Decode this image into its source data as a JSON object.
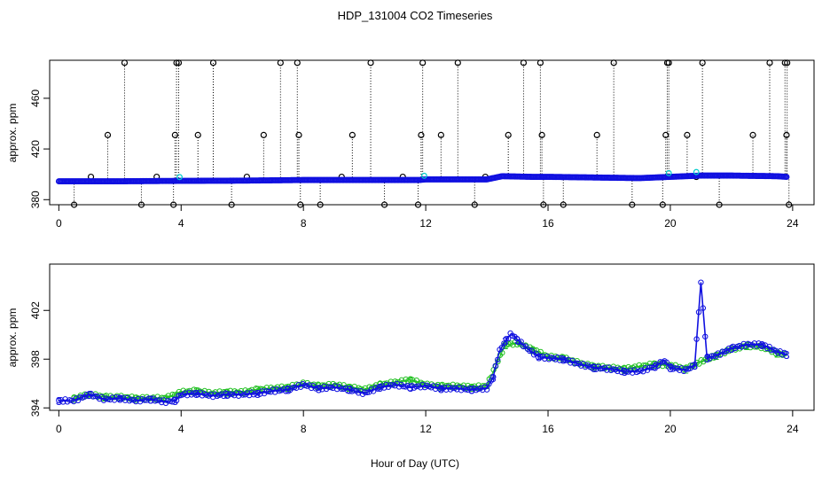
{
  "title": "HDP_131004  CO2 Timeseries",
  "xlabel": "Hour of Day (UTC)",
  "colors": {
    "primary": "#1010e0",
    "secondary": "#20c020",
    "outlier": "#000000",
    "highlight": "#00cccc"
  },
  "chart_data": [
    {
      "type": "scatter",
      "ylabel": "approx. ppm",
      "xlim": [
        -0.3,
        24.7
      ],
      "ylim": [
        376,
        490
      ],
      "xticks": [
        0,
        4,
        8,
        12,
        16,
        20,
        24
      ],
      "yticks": [
        380,
        420,
        460
      ],
      "baseline": [
        [
          0,
          394.5
        ],
        [
          2,
          394.5
        ],
        [
          3.8,
          394.8
        ],
        [
          6,
          395
        ],
        [
          8,
          395.5
        ],
        [
          10,
          395.5
        ],
        [
          11.8,
          395.5
        ],
        [
          12,
          396
        ],
        [
          14,
          396
        ],
        [
          14.5,
          398.5
        ],
        [
          15.5,
          398
        ],
        [
          16,
          398
        ],
        [
          19,
          397
        ],
        [
          20,
          398
        ],
        [
          21,
          399
        ],
        [
          22,
          399
        ],
        [
          23.5,
          398.5
        ],
        [
          23.8,
          398
        ]
      ],
      "outlier_hours_top": [
        2.15,
        3.85,
        3.92,
        5.05,
        7.25,
        7.8,
        10.2,
        11.9,
        13.05,
        15.2,
        15.75,
        18.15,
        19.9,
        19.95,
        21.05,
        23.25,
        23.75,
        23.82
      ],
      "outlier_hours_mid": [
        1.6,
        3.8,
        4.55,
        6.7,
        7.85,
        9.6,
        11.85,
        12.5,
        14.7,
        15.8,
        17.6,
        19.85,
        20.55,
        22.7,
        23.8
      ],
      "outlier_hours_low": [
        0.5,
        2.7,
        3.75,
        5.65,
        7.9,
        8.55,
        10.65,
        11.75,
        13.6,
        15.85,
        16.5,
        18.75,
        19.75,
        21.6,
        23.88
      ],
      "outlier_hours_near": [
        1.05,
        3.2,
        6.15,
        9.25,
        11.25,
        13.95,
        20.85
      ],
      "outlier_values": {
        "top": 488,
        "mid": 431,
        "low": 376,
        "near": 398
      }
    },
    {
      "type": "line",
      "ylabel": "approx. ppm",
      "xlim": [
        -0.3,
        24.7
      ],
      "ylim": [
        393.8,
        405.8
      ],
      "xticks": [
        0,
        4,
        8,
        12,
        16,
        20,
        24
      ],
      "yticks": [
        394,
        398,
        402
      ],
      "series": [
        {
          "marker": "3",
          "values": [
            [
              0,
              394.6
            ],
            [
              0.5,
              394.6
            ],
            [
              1,
              395.1
            ],
            [
              1.5,
              394.7
            ],
            [
              2,
              394.8
            ],
            [
              2.5,
              394.6
            ],
            [
              3,
              394.7
            ],
            [
              3.5,
              394.5
            ],
            [
              3.8,
              394.6
            ],
            [
              4,
              395.1
            ],
            [
              4.5,
              395.2
            ],
            [
              5,
              395
            ],
            [
              5.5,
              395.1
            ],
            [
              6,
              395.1
            ],
            [
              6.5,
              395.2
            ],
            [
              7,
              395.4
            ],
            [
              7.5,
              395.5
            ],
            [
              8,
              395.9
            ],
            [
              8.5,
              395.6
            ],
            [
              9,
              395.7
            ],
            [
              9.5,
              395.5
            ],
            [
              10,
              395.2
            ],
            [
              10.5,
              395.7
            ],
            [
              11,
              395.9
            ],
            [
              11.5,
              395.7
            ],
            [
              12,
              395.8
            ],
            [
              12.5,
              395.6
            ],
            [
              13,
              395.6
            ],
            [
              13.5,
              395.5
            ],
            [
              14,
              395.6
            ],
            [
              14.2,
              396.5
            ],
            [
              14.4,
              398.6
            ],
            [
              14.6,
              399.5
            ],
            [
              14.8,
              400.1
            ],
            [
              15,
              399.6
            ],
            [
              15.3,
              398.9
            ],
            [
              15.7,
              398.2
            ],
            [
              16,
              398.1
            ],
            [
              16.5,
              398
            ],
            [
              17,
              397.6
            ],
            [
              17.5,
              397.3
            ],
            [
              18,
              397.2
            ],
            [
              18.5,
              397
            ],
            [
              19,
              397
            ],
            [
              19.5,
              397.4
            ],
            [
              19.8,
              397.9
            ],
            [
              20,
              397.3
            ],
            [
              20.5,
              397.1
            ],
            [
              20.8,
              397.5
            ],
            [
              21,
              404.3
            ],
            [
              21.2,
              398.1
            ],
            [
              21.5,
              398.3
            ],
            [
              22,
              398.9
            ],
            [
              22.5,
              399.2
            ],
            [
              23,
              399.2
            ],
            [
              23.5,
              398.6
            ],
            [
              23.8,
              398.4
            ]
          ]
        },
        {
          "marker": "2",
          "values": [
            [
              0.5,
              394.8
            ],
            [
              1,
              395.1
            ],
            [
              1.5,
              394.9
            ],
            [
              2,
              394.9
            ],
            [
              2.5,
              394.8
            ],
            [
              3,
              394.8
            ],
            [
              3.5,
              394.8
            ],
            [
              4,
              395.3
            ],
            [
              4.5,
              395.4
            ],
            [
              5,
              395.2
            ],
            [
              5.5,
              395.3
            ],
            [
              6,
              395.3
            ],
            [
              6.5,
              395.5
            ],
            [
              7,
              395.6
            ],
            [
              7.5,
              395.7
            ],
            [
              8,
              396
            ],
            [
              8.5,
              395.8
            ],
            [
              9,
              395.9
            ],
            [
              9.5,
              395.7
            ],
            [
              10,
              395.5
            ],
            [
              10.5,
              395.9
            ],
            [
              11,
              396.1
            ],
            [
              11.5,
              396.3
            ],
            [
              12,
              395.9
            ],
            [
              12.5,
              395.8
            ],
            [
              13,
              395.8
            ],
            [
              13.5,
              395.7
            ],
            [
              14,
              395.8
            ],
            [
              14.6,
              399.2
            ],
            [
              15,
              399.3
            ],
            [
              15.5,
              398.8
            ],
            [
              16,
              398.2
            ],
            [
              16.5,
              398.1
            ],
            [
              17,
              397.7
            ],
            [
              17.5,
              397.4
            ],
            [
              18,
              397.3
            ],
            [
              18.5,
              397.2
            ],
            [
              19,
              397.4
            ],
            [
              19.5,
              397.6
            ],
            [
              20,
              397.5
            ],
            [
              20.5,
              397.2
            ],
            [
              21,
              397.8
            ],
            [
              21.5,
              398.3
            ],
            [
              22,
              398.8
            ],
            [
              22.5,
              399.1
            ],
            [
              23,
              399
            ],
            [
              23.5,
              398.5
            ],
            [
              23.8,
              398.3
            ]
          ]
        }
      ]
    }
  ]
}
